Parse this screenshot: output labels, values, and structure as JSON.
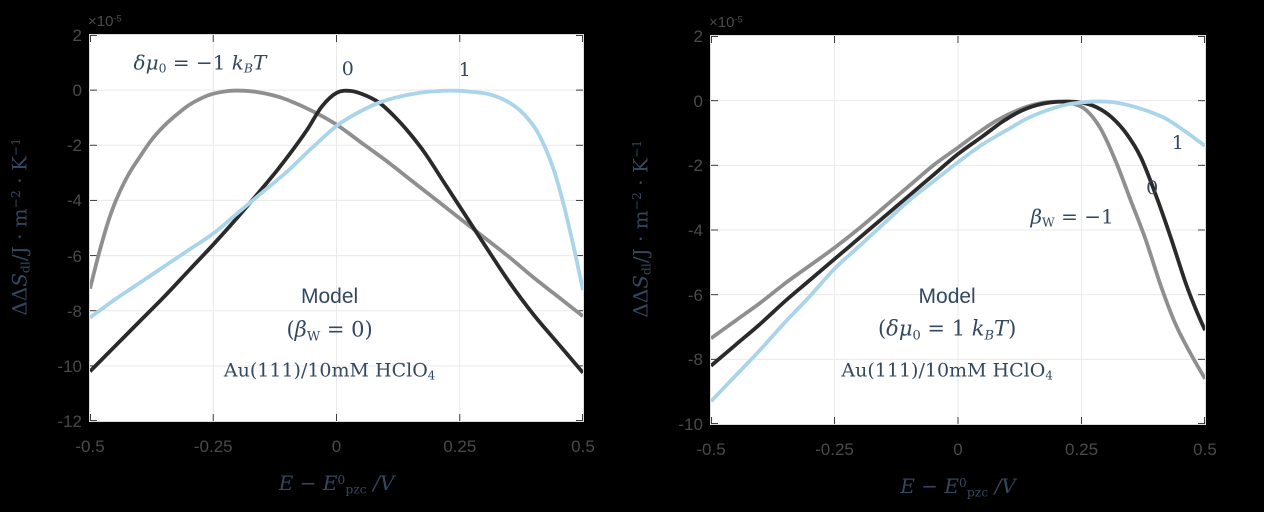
{
  "figure": {
    "bg": "#000000",
    "plot_bg": "#ffffff",
    "grid_color": "#e9e9e9",
    "box_color": "#dcdcdc",
    "tick_mark_color": "#3c3c3c",
    "tick_label_color": "#4a4a4a",
    "label_color": "#33485f",
    "curve_colors": {
      "gray": "#8f8f8f",
      "black": "#2a2a2a",
      "lightblue": "#a9d4e9"
    }
  },
  "chart_data": [
    {
      "type": "line",
      "panel": "left",
      "title": "Model (betaW = 0), Au(111)/10mM HClO4, entropy vs potential",
      "xlim": [
        -0.5,
        0.5
      ],
      "ylim": [
        -12,
        2
      ],
      "grid": true,
      "y_multiplier": "x10^-5",
      "xticks": [
        "-0.5",
        "-0.25",
        "0",
        "0.25",
        "0.5"
      ],
      "xtick_values": [
        -0.5,
        -0.25,
        0,
        0.25,
        0.5
      ],
      "yticks": [
        "2",
        "0",
        "-2",
        "-4",
        "-6",
        "-8",
        "-10",
        "-12"
      ],
      "ytick_values": [
        2,
        0,
        -2,
        -4,
        -6,
        -8,
        -10,
        -12
      ],
      "exponent_segments": [
        {
          "t": "×10"
        },
        {
          "t": "-5",
          "sup": true
        }
      ],
      "ylabel_segments": [
        {
          "t": "ΔΔ"
        },
        {
          "t": "S",
          "i": true
        },
        {
          "t": "dl",
          "sub": true
        },
        {
          "t": "/J · m"
        },
        {
          "t": "−2",
          "sup": true
        },
        {
          "t": " · K"
        },
        {
          "t": "−1",
          "sup": true
        }
      ],
      "xlabel_segments": [
        {
          "t": "E",
          "i": true
        },
        {
          "t": " − "
        },
        {
          "t": "E",
          "i": true
        },
        {
          "t": "0",
          "sup": true
        },
        {
          "t": "pzc",
          "sub": true
        },
        {
          "t": " /V",
          "i": true
        }
      ],
      "series": [
        {
          "key": "dmu0-neg1",
          "name": "δμ0 = −1 kBT",
          "color": "#8f8f8f",
          "x": [
            -0.5,
            -0.48,
            -0.46,
            -0.44,
            -0.42,
            -0.4,
            -0.375,
            -0.35,
            -0.325,
            -0.3,
            -0.275,
            -0.25,
            -0.22,
            -0.19,
            -0.16,
            -0.13,
            -0.1,
            -0.05,
            0.0,
            0.05,
            0.1,
            0.15,
            0.2,
            0.25,
            0.3,
            0.35,
            0.4,
            0.45,
            0.5
          ],
          "y": [
            -7.2,
            -5.8,
            -4.6,
            -3.7,
            -3.0,
            -2.45,
            -1.8,
            -1.3,
            -0.9,
            -0.55,
            -0.3,
            -0.13,
            -0.03,
            -0.02,
            -0.07,
            -0.18,
            -0.35,
            -0.75,
            -1.25,
            -1.9,
            -2.55,
            -3.25,
            -3.95,
            -4.65,
            -5.35,
            -6.05,
            -6.8,
            -7.5,
            -8.2
          ]
        },
        {
          "key": "dmu0-0",
          "name": "δμ0 = 0 kBT",
          "color": "#2a2a2a",
          "x": [
            -0.5,
            -0.45,
            -0.4,
            -0.35,
            -0.3,
            -0.25,
            -0.2,
            -0.15,
            -0.12,
            -0.09,
            -0.06,
            -0.03,
            0.0,
            0.03,
            0.06,
            0.09,
            0.12,
            0.15,
            0.18,
            0.22,
            0.26,
            0.3,
            0.35,
            0.4,
            0.45,
            0.5
          ],
          "y": [
            -10.2,
            -9.3,
            -8.4,
            -7.5,
            -6.55,
            -5.6,
            -4.6,
            -3.55,
            -2.9,
            -2.2,
            -1.45,
            -0.6,
            -0.1,
            -0.03,
            -0.2,
            -0.5,
            -1.0,
            -1.6,
            -2.3,
            -3.4,
            -4.5,
            -5.6,
            -6.95,
            -8.15,
            -9.2,
            -10.25
          ]
        },
        {
          "key": "dmu0-pos1",
          "name": "δμ0 = 1 kBT",
          "color": "#a9d4e9",
          "x": [
            -0.5,
            -0.45,
            -0.4,
            -0.35,
            -0.3,
            -0.25,
            -0.2,
            -0.15,
            -0.1,
            -0.05,
            0.0,
            0.04,
            0.08,
            0.12,
            0.16,
            0.2,
            0.24,
            0.28,
            0.31,
            0.34,
            0.37,
            0.4,
            0.42,
            0.44,
            0.46,
            0.48,
            0.5
          ],
          "y": [
            -8.25,
            -7.6,
            -7.0,
            -6.4,
            -5.8,
            -5.2,
            -4.45,
            -3.7,
            -2.95,
            -2.1,
            -1.3,
            -0.85,
            -0.5,
            -0.27,
            -0.12,
            -0.04,
            -0.02,
            -0.07,
            -0.15,
            -0.35,
            -0.7,
            -1.3,
            -1.95,
            -2.85,
            -4.1,
            -5.6,
            -7.25
          ]
        }
      ],
      "annotations": [
        {
          "key": "param-label",
          "x": -0.277,
          "y": 1.0,
          "size": 20,
          "segments": [
            {
              "t": "δμ",
              "i": true
            },
            {
              "t": "0",
              "sub": true
            },
            {
              "t": " = −1 "
            },
            {
              "t": "k",
              "i": true
            },
            {
              "t": "B",
              "sub": true,
              "i": true
            },
            {
              "t": "T",
              "i": true
            }
          ]
        },
        {
          "key": "curve-label-0",
          "x": 0.023,
          "y": 0.75,
          "size": 19,
          "segments": [
            {
              "t": "0"
            }
          ]
        },
        {
          "key": "curve-label-1",
          "x": 0.26,
          "y": 0.72,
          "size": 19,
          "segments": [
            {
              "t": "1"
            }
          ]
        },
        {
          "key": "model-title",
          "x": -0.014,
          "y": -7.5,
          "size": 21,
          "sans": true,
          "segments": [
            {
              "t": "Model"
            }
          ]
        },
        {
          "key": "model-condition",
          "x": -0.014,
          "y": -8.75,
          "size": 21,
          "segments": [
            {
              "t": "("
            },
            {
              "t": "β",
              "i": true
            },
            {
              "t": "W",
              "sub": true
            },
            {
              "t": " = 0)"
            }
          ]
        },
        {
          "key": "system-label",
          "x": -0.014,
          "y": -10.2,
          "size": 19,
          "segments": [
            {
              "t": "Au(111)/10mM HClO"
            },
            {
              "t": "4",
              "sub": true
            }
          ]
        }
      ]
    },
    {
      "type": "line",
      "panel": "right",
      "title": "Model (dmu0 = 1 kBT), Au(111)/10mM HClO4, entropy vs potential",
      "xlim": [
        -0.5,
        0.5
      ],
      "ylim": [
        -10,
        2
      ],
      "grid": true,
      "y_multiplier": "x10^-5",
      "xticks": [
        "-0.5",
        "-0.25",
        "0",
        "0.25",
        "0.5"
      ],
      "xtick_values": [
        -0.5,
        -0.25,
        0,
        0.25,
        0.5
      ],
      "yticks": [
        "2",
        "0",
        "-2",
        "-4",
        "-6",
        "-8",
        "-10"
      ],
      "ytick_values": [
        2,
        0,
        -2,
        -4,
        -6,
        -8,
        -10
      ],
      "exponent_segments": [
        {
          "t": "×10"
        },
        {
          "t": "-5",
          "sup": true
        }
      ],
      "ylabel_segments": [
        {
          "t": "ΔΔ"
        },
        {
          "t": "S",
          "i": true
        },
        {
          "t": "dl",
          "sub": true
        },
        {
          "t": "/J · m"
        },
        {
          "t": "−2",
          "sup": true
        },
        {
          "t": " · K"
        },
        {
          "t": "−1",
          "sup": true
        }
      ],
      "xlabel_segments": [
        {
          "t": "E",
          "i": true
        },
        {
          "t": " − "
        },
        {
          "t": "E",
          "i": true
        },
        {
          "t": "0",
          "sup": true
        },
        {
          "t": "pzc",
          "sub": true
        },
        {
          "t": " /V",
          "i": true
        }
      ],
      "series": [
        {
          "key": "betaW-neg1",
          "name": "βW = −1",
          "color": "#8f8f8f",
          "x": [
            -0.5,
            -0.45,
            -0.4,
            -0.35,
            -0.3,
            -0.25,
            -0.2,
            -0.15,
            -0.1,
            -0.05,
            0.0,
            0.04,
            0.08,
            0.12,
            0.16,
            0.2,
            0.23,
            0.26,
            0.29,
            0.32,
            0.35,
            0.38,
            0.41,
            0.44,
            0.47,
            0.5
          ],
          "y": [
            -7.35,
            -6.8,
            -6.25,
            -5.65,
            -5.1,
            -4.55,
            -3.95,
            -3.3,
            -2.65,
            -2.0,
            -1.45,
            -1.0,
            -0.6,
            -0.3,
            -0.1,
            -0.03,
            -0.08,
            -0.3,
            -0.9,
            -1.9,
            -3.1,
            -4.3,
            -5.7,
            -6.9,
            -7.8,
            -8.6
          ]
        },
        {
          "key": "betaW-0",
          "name": "βW = 0",
          "color": "#2a2a2a",
          "x": [
            -0.5,
            -0.45,
            -0.4,
            -0.35,
            -0.3,
            -0.25,
            -0.2,
            -0.15,
            -0.1,
            -0.05,
            0.0,
            0.05,
            0.09,
            0.13,
            0.17,
            0.21,
            0.25,
            0.28,
            0.31,
            0.34,
            0.37,
            0.4,
            0.43,
            0.46,
            0.48,
            0.5
          ],
          "y": [
            -8.2,
            -7.55,
            -6.9,
            -6.2,
            -5.55,
            -4.9,
            -4.25,
            -3.6,
            -2.95,
            -2.3,
            -1.65,
            -1.1,
            -0.65,
            -0.3,
            -0.1,
            -0.03,
            -0.06,
            -0.2,
            -0.5,
            -1.0,
            -1.75,
            -2.9,
            -4.2,
            -5.6,
            -6.4,
            -7.1
          ]
        },
        {
          "key": "betaW-pos1",
          "name": "βW = 1",
          "color": "#a9d4e9",
          "x": [
            -0.5,
            -0.45,
            -0.4,
            -0.35,
            -0.3,
            -0.25,
            -0.2,
            -0.15,
            -0.1,
            -0.05,
            0.0,
            0.05,
            0.1,
            0.14,
            0.18,
            0.22,
            0.26,
            0.3,
            0.34,
            0.38,
            0.42,
            0.46,
            0.5
          ],
          "y": [
            -9.3,
            -8.5,
            -7.7,
            -6.85,
            -6.05,
            -5.2,
            -4.5,
            -3.8,
            -3.1,
            -2.5,
            -1.9,
            -1.35,
            -0.9,
            -0.55,
            -0.3,
            -0.12,
            -0.04,
            -0.03,
            -0.12,
            -0.3,
            -0.55,
            -0.95,
            -1.4
          ]
        }
      ],
      "annotations": [
        {
          "key": "param-label",
          "x": 0.231,
          "y": -3.6,
          "size": 20,
          "segments": [
            {
              "t": "β",
              "i": true
            },
            {
              "t": "W",
              "sub": true
            },
            {
              "t": " = −1"
            }
          ]
        },
        {
          "key": "curve-label-0",
          "x": 0.393,
          "y": -2.7,
          "size": 19,
          "segments": [
            {
              "t": "0"
            }
          ]
        },
        {
          "key": "curve-label-1",
          "x": 0.445,
          "y": -1.31,
          "size": 19,
          "segments": [
            {
              "t": "1"
            }
          ]
        },
        {
          "key": "model-title",
          "x": -0.022,
          "y": -6.08,
          "size": 21,
          "sans": true,
          "segments": [
            {
              "t": "Model"
            }
          ]
        },
        {
          "key": "model-condition",
          "x": -0.022,
          "y": -7.1,
          "size": 21,
          "segments": [
            {
              "t": "("
            },
            {
              "t": "δμ",
              "i": true
            },
            {
              "t": "0",
              "sub": true
            },
            {
              "t": " = 1 "
            },
            {
              "t": "k",
              "i": true
            },
            {
              "t": "B",
              "sub": true,
              "i": true
            },
            {
              "t": "T",
              "i": true
            },
            {
              "t": ")"
            }
          ]
        },
        {
          "key": "system-label",
          "x": -0.022,
          "y": -8.37,
          "size": 19,
          "segments": [
            {
              "t": "Au(111)/10mM HClO"
            },
            {
              "t": "4",
              "sub": true
            }
          ]
        }
      ]
    }
  ]
}
